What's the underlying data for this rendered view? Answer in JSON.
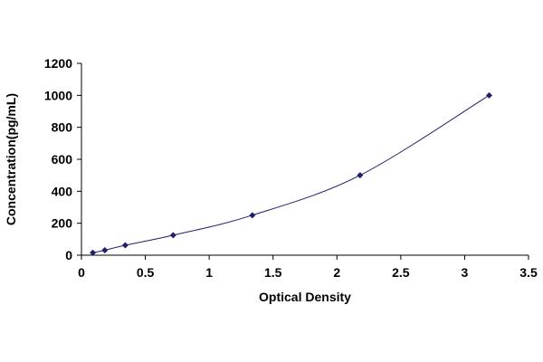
{
  "chart_data": {
    "type": "scatter",
    "title": "",
    "xlabel": "Optical Density",
    "ylabel": "Concentration(pg/mL)",
    "xlim": [
      0,
      3.5
    ],
    "ylim": [
      0,
      1200
    ],
    "x_ticks": [
      "0",
      "0.5",
      "1",
      "1.5",
      "2",
      "2.5",
      "3",
      "3.5"
    ],
    "y_ticks": [
      "0",
      "200",
      "400",
      "600",
      "800",
      "1000",
      "1200"
    ],
    "x_tick_values": [
      0,
      0.5,
      1,
      1.5,
      2,
      2.5,
      3,
      3.5
    ],
    "y_tick_values": [
      0,
      200,
      400,
      600,
      800,
      1000,
      1200
    ],
    "grid": false,
    "legend": false,
    "series": [
      {
        "x": [
          0.089,
          0.183,
          0.343,
          0.718,
          1.338,
          2.181,
          3.192
        ],
        "y": [
          15.6,
          31.2,
          62.5,
          125,
          250,
          500,
          1000
        ],
        "marker": "diamond",
        "trendline": "smooth curve"
      }
    ],
    "colors": {
      "series": "#1f1f6e",
      "axis": "#000000"
    }
  }
}
